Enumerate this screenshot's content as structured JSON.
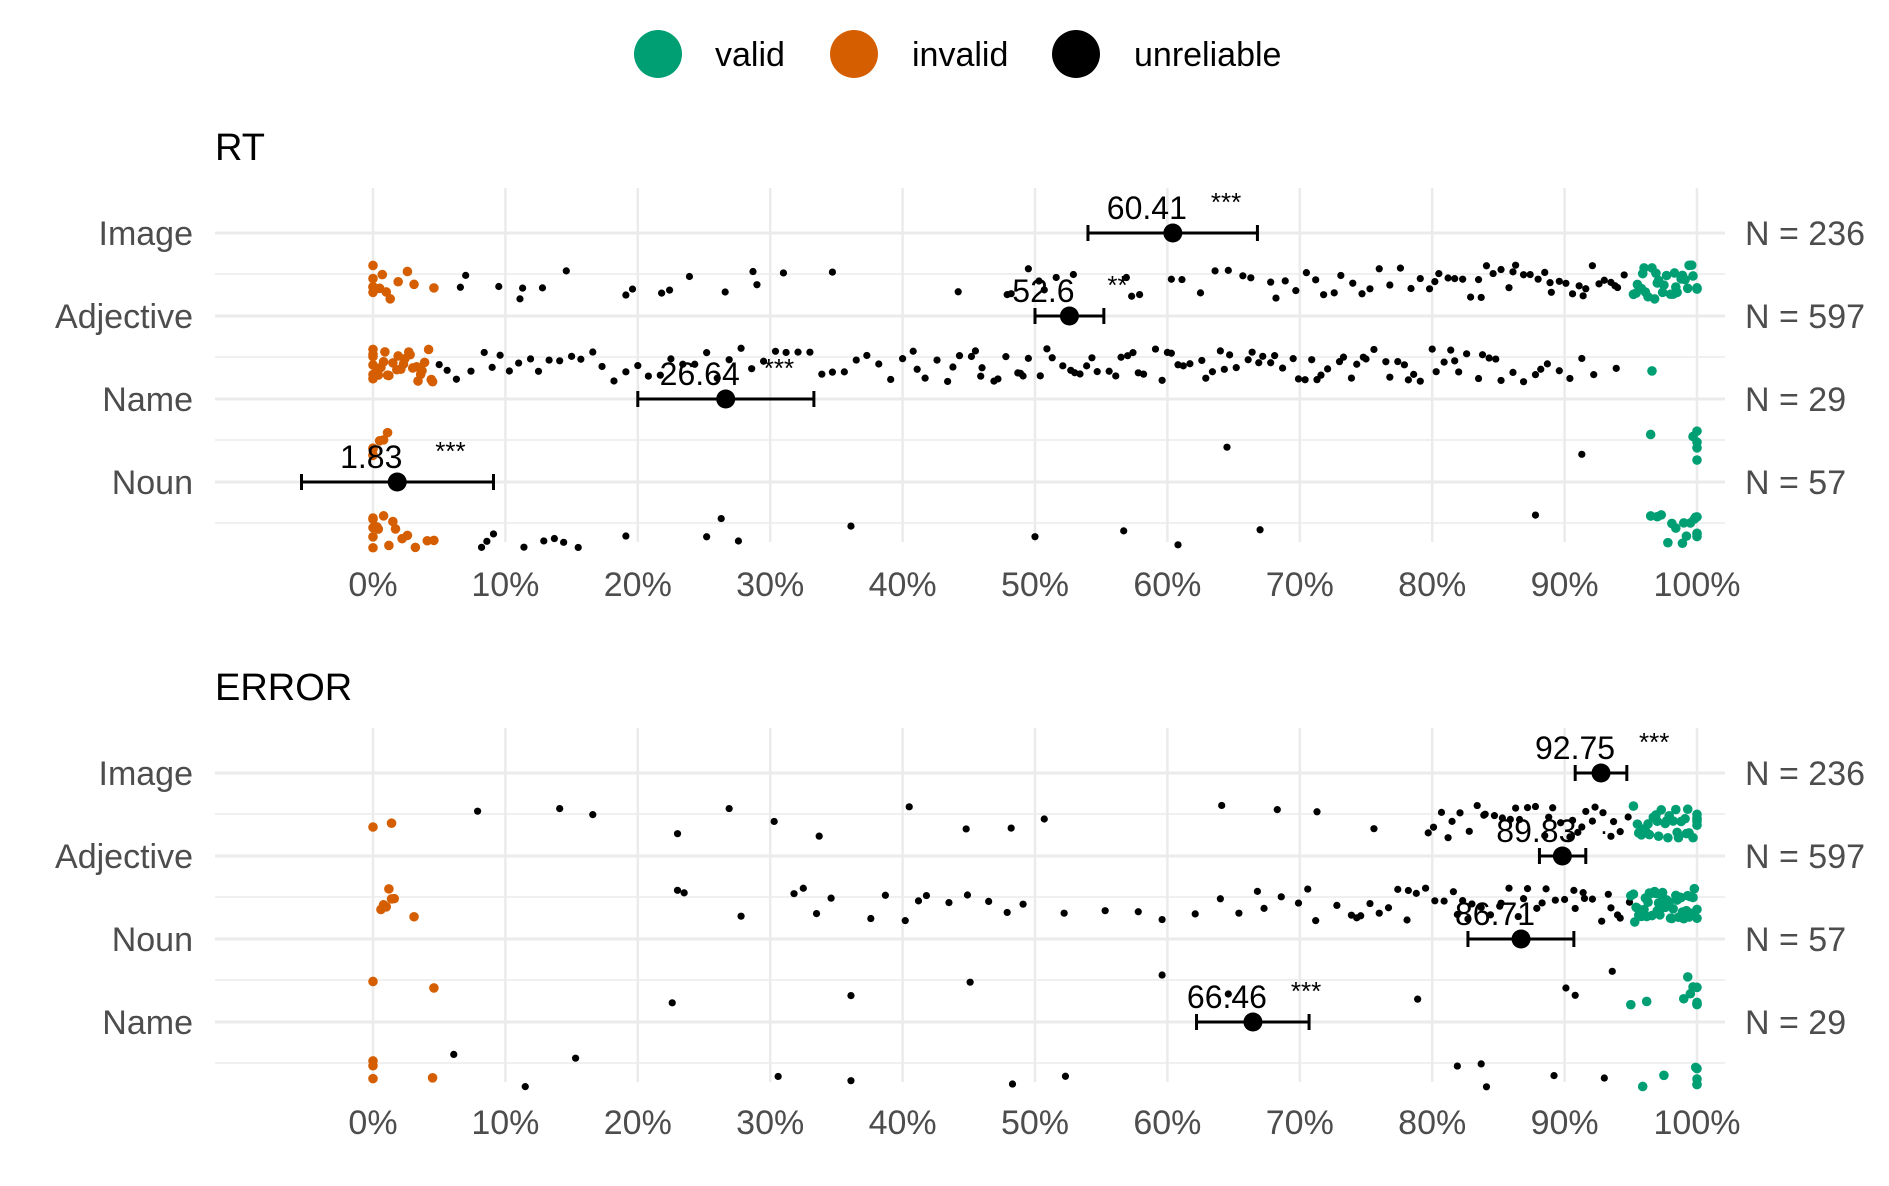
{
  "legend": {
    "entries": [
      {
        "label": "valid",
        "color": "#009E73"
      },
      {
        "label": "invalid",
        "color": "#D55E00"
      },
      {
        "label": "unreliable",
        "color": "#000000"
      }
    ],
    "placement": "top-center"
  },
  "colors": {
    "valid": "#009E73",
    "invalid": "#D55E00",
    "unreliable": "#000000",
    "grid": "#EBEBEB",
    "axis_text": "#4D4D4D"
  },
  "chart_data": [
    {
      "type": "scatter",
      "title": "RT",
      "x_ticks": [
        "0%",
        "10%",
        "20%",
        "30%",
        "40%",
        "50%",
        "60%",
        "70%",
        "80%",
        "90%",
        "100%"
      ],
      "xlim": [
        0,
        100
      ],
      "grid": true,
      "categories": [
        "Image",
        "Adjective",
        "Name",
        "Noun"
      ],
      "n_labels": [
        "N = 236",
        "N = 597",
        "N = 29",
        "N = 57"
      ],
      "means": [
        {
          "category": "Image",
          "mean": 60.41,
          "ci": [
            54.0,
            66.8
          ],
          "label": "60.41",
          "sig": "***"
        },
        {
          "category": "Adjective",
          "mean": 52.6,
          "ci": [
            50.0,
            55.2
          ],
          "label": "52.6",
          "sig": "**"
        },
        {
          "category": "Name",
          "mean": 26.64,
          "ci": [
            20.0,
            33.3
          ],
          "label": "26.64",
          "sig": "***"
        },
        {
          "category": "Noun",
          "mean": 1.83,
          "ci": [
            -5.4,
            9.1
          ],
          "label": "1.83",
          "sig": "***"
        }
      ],
      "points": {
        "Image": {
          "valid": [
            95.2,
            95.5,
            95.8,
            96.0,
            96.3,
            96.6,
            96.9,
            97.1,
            97.4,
            97.7,
            98.0,
            98.3,
            98.5,
            98.8,
            99.1,
            99.4,
            99.7,
            100,
            95.4,
            96.1,
            96.8,
            97.5,
            98.2,
            98.9,
            99.6,
            95.9,
            97.0,
            98.4,
            99.3,
            100
          ],
          "invalid": [
            0,
            0,
            0,
            0,
            0,
            0.5,
            0.7,
            1.0,
            1.3,
            1.9,
            2.6,
            3.1,
            4.6
          ],
          "unreliable": [
            6.6,
            7.0,
            9.5,
            11.1,
            11.3,
            12.8,
            14.6,
            19.1,
            19.6,
            21.8,
            22.4,
            23.9,
            26.6,
            28.7,
            29.0,
            31.0,
            34.7,
            44.2,
            47.9,
            48.2,
            49.5,
            50.3,
            50.7,
            51.6,
            52.9,
            56.9,
            57.3,
            57.9,
            60.3,
            61.1,
            62.5,
            63.6,
            64.6,
            65.7,
            66.3,
            67.8,
            68.2,
            68.9,
            69.7,
            70.5,
            71.2,
            71.8,
            72.6,
            73.1,
            74.0,
            74.7,
            75.3,
            76.0,
            76.8,
            77.6,
            78.4,
            79.1,
            79.8,
            80.5,
            81.2,
            81.7,
            82.3,
            82.9,
            83.5,
            84.1,
            84.6,
            85.2,
            85.8,
            86.3,
            86.9,
            87.4,
            88.0,
            88.5,
            89.0,
            89.6,
            90.1,
            90.6,
            91.1,
            91.6,
            92.1,
            92.6,
            93.0,
            93.5,
            94.0,
            94.5,
            80.2,
            83.7,
            86.1,
            88.9,
            91.4,
            93.8
          ]
        },
        "Adjective": {
          "valid": [
            96.6
          ],
          "invalid": [
            0,
            0,
            0,
            0,
            0,
            0,
            0.3,
            0.6,
            0.9,
            1.2,
            1.5,
            1.8,
            2.1,
            2.4,
            2.7,
            3.0,
            3.3,
            3.6,
            3.9,
            4.2,
            4.5,
            0.4,
            1.1,
            1.9,
            2.8,
            3.7,
            4.4,
            0.8,
            2.3,
            3.4
          ],
          "unreliable": [
            5.0,
            5.6,
            6.3,
            7.4,
            8.4,
            9.0,
            9.6,
            10.3,
            11.0,
            11.9,
            12.5,
            13.3,
            14.1,
            15.0,
            15.7,
            16.6,
            17.3,
            18.2,
            19.1,
            20.0,
            20.8,
            21.7,
            22.5,
            23.4,
            24.3,
            25.2,
            26.0,
            26.9,
            27.8,
            28.6,
            29.5,
            30.4,
            31.2,
            32.1,
            33.0,
            33.9,
            34.7,
            35.6,
            36.5,
            37.3,
            38.2,
            39.1,
            40.0,
            40.8,
            41.7,
            42.6,
            43.4,
            44.3,
            45.2,
            46.0,
            46.9,
            47.8,
            48.7,
            49.5,
            50.4,
            51.3,
            52.1,
            53.0,
            53.9,
            54.7,
            55.6,
            56.5,
            57.4,
            58.2,
            59.1,
            60.0,
            60.8,
            61.7,
            62.6,
            63.4,
            64.3,
            65.2,
            66.1,
            66.9,
            67.8,
            68.7,
            69.5,
            70.4,
            71.3,
            72.1,
            73.0,
            73.9,
            74.8,
            75.6,
            76.5,
            77.4,
            78.2,
            79.1,
            80.0,
            80.9,
            81.7,
            82.6,
            83.5,
            84.3,
            85.2,
            86.1,
            86.9,
            87.8,
            88.7,
            89.6,
            90.4,
            91.3,
            92.2,
            93.9,
            41.1,
            43.8,
            45.5,
            47.2,
            48.9,
            50.9,
            52.7,
            54.3,
            56.1,
            57.8,
            59.6,
            61.2,
            62.9,
            64.7,
            66.4,
            68.1,
            69.9,
            71.6,
            73.3,
            75.0,
            76.8,
            78.6,
            80.3,
            82.0,
            83.8,
            45.9,
            49.1,
            53.4,
            57.0,
            60.3,
            64.0,
            67.2,
            70.9,
            74.3,
            77.9,
            81.4,
            84.8,
            88.2
          ]
        },
        "Name": {
          "valid": [
            99.7,
            100,
            100,
            100,
            100,
            96.5
          ],
          "invalid": [
            0,
            0,
            0,
            0,
            0.5,
            0.8,
            1.1
          ],
          "unreliable": [
            64.5,
            91.3
          ]
        },
        "Noun": {
          "valid": [
            96.5,
            97.3,
            97.8,
            98.4,
            98.9,
            99.2,
            99.5,
            99.8,
            100,
            100,
            100,
            100,
            97.0,
            98.1,
            99.0,
            99.9
          ],
          "invalid": [
            0,
            0,
            0,
            0,
            0,
            0.4,
            0.8,
            1.2,
            1.7,
            2.6,
            3.2,
            4.1,
            4.6,
            0.3,
            1.5,
            2.2
          ],
          "unreliable": [
            8.2,
            8.6,
            9.1,
            11.4,
            12.9,
            13.7,
            14.4,
            15.5,
            19.1,
            25.2,
            26.3,
            27.6,
            36.1,
            50.0,
            56.7,
            60.8,
            67.0,
            87.8
          ]
        }
      }
    },
    {
      "type": "scatter",
      "title": "ERROR",
      "x_ticks": [
        "0%",
        "10%",
        "20%",
        "30%",
        "40%",
        "50%",
        "60%",
        "70%",
        "80%",
        "90%",
        "100%"
      ],
      "xlim": [
        0,
        100
      ],
      "grid": true,
      "categories": [
        "Image",
        "Adjective",
        "Noun",
        "Name"
      ],
      "n_labels": [
        "N = 236",
        "N = 597",
        "N = 57",
        "N = 29"
      ],
      "means": [
        {
          "category": "Image",
          "mean": 92.75,
          "ci": [
            90.8,
            94.7
          ],
          "label": "92.75",
          "sig": "***"
        },
        {
          "category": "Adjective",
          "mean": 89.83,
          "ci": [
            88.1,
            91.6
          ],
          "label": "89.83",
          "sig": "."
        },
        {
          "category": "Noun",
          "mean": 86.71,
          "ci": [
            82.7,
            90.7
          ],
          "label": "86.71",
          "sig": ""
        },
        {
          "category": "Name",
          "mean": 66.46,
          "ci": [
            62.2,
            70.7
          ],
          "label": "66.46",
          "sig": "***"
        }
      ],
      "points": {
        "Image": {
          "valid": [
            95.2,
            95.5,
            95.8,
            96.1,
            96.4,
            96.7,
            97.0,
            97.3,
            97.6,
            97.9,
            98.2,
            98.5,
            98.8,
            99.1,
            99.4,
            99.7,
            100,
            100,
            100,
            95.6,
            96.3,
            97.1,
            97.8,
            98.6,
            99.3,
            100,
            95.9,
            96.9,
            97.7,
            98.4,
            99.2,
            100
          ],
          "invalid": [
            0,
            1.4
          ],
          "unreliable": [
            7.9,
            14.1,
            16.6,
            23.0,
            26.9,
            30.3,
            33.7,
            40.5,
            44.8,
            48.2,
            50.7,
            64.1,
            68.3,
            71.3,
            75.6,
            79.7,
            80.1,
            80.7,
            81.5,
            82.1,
            82.8,
            83.4,
            84.0,
            84.7,
            85.3,
            85.9,
            86.6,
            87.2,
            87.8,
            88.5,
            89.1,
            89.7,
            90.4,
            91.0,
            91.6,
            92.3,
            92.9,
            93.5,
            94.2,
            94.8,
            81.2,
            83.9,
            86.3,
            88.8,
            91.3,
            93.7,
            90.6,
            92.1
          ]
        },
        "Adjective": {
          "valid": [
            95.0,
            95.2,
            95.4,
            95.6,
            95.8,
            96.0,
            96.2,
            96.4,
            96.6,
            96.8,
            97.0,
            97.2,
            97.4,
            97.6,
            97.8,
            98.0,
            98.2,
            98.4,
            98.6,
            98.8,
            99.0,
            99.2,
            99.4,
            99.6,
            99.8,
            100,
            95.3,
            95.7,
            96.1,
            96.5,
            96.9,
            97.3,
            97.7,
            98.1,
            98.5,
            98.9,
            99.3,
            99.7,
            100,
            95.5,
            96.3,
            97.1,
            97.9,
            98.7,
            99.5
          ],
          "invalid": [
            0.6,
            0.8,
            1.0,
            1.2,
            1.4,
            1.6,
            3.1
          ],
          "unreliable": [
            23.0,
            23.5,
            27.8,
            31.8,
            32.5,
            33.5,
            34.6,
            37.6,
            38.7,
            40.2,
            41.2,
            41.8,
            43.5,
            44.9,
            46.5,
            47.9,
            49.1,
            52.2,
            55.3,
            57.8,
            59.6,
            62.1,
            64.0,
            65.4,
            66.8,
            67.3,
            68.6,
            69.9,
            70.6,
            71.2,
            72.8,
            73.9,
            74.6,
            75.3,
            76.0,
            76.7,
            77.4,
            78.1,
            78.8,
            79.5,
            80.2,
            80.9,
            81.6,
            82.3,
            83.0,
            83.7,
            84.4,
            85.1,
            85.8,
            86.5,
            87.2,
            87.9,
            88.6,
            89.3,
            90.0,
            90.7,
            91.4,
            92.1,
            92.8,
            93.5,
            94.2,
            94.9,
            74.3,
            78.2,
            81.9,
            85.2,
            88.3,
            91.5,
            94.0,
            82.7,
            86.9,
            90.8,
            93.3
          ]
        },
        "Noun": {
          "valid": [
            95.0,
            96.2,
            99.0,
            99.3,
            99.5,
            99.7,
            100,
            100,
            100,
            100
          ],
          "invalid": [
            0,
            4.6
          ],
          "unreliable": [
            22.6,
            36.1,
            45.1,
            59.6,
            64.6,
            78.9,
            90.1,
            90.8,
            93.6
          ]
        },
        "Name": {
          "valid": [
            95.9,
            97.5,
            99.9,
            100,
            100,
            100,
            100
          ],
          "invalid": [
            0,
            0,
            0,
            4.5
          ],
          "unreliable": [
            6.1,
            11.5,
            15.3,
            30.6,
            36.1,
            48.3,
            52.3,
            81.9,
            83.7,
            84.1,
            89.2,
            93.0
          ]
        }
      }
    }
  ]
}
